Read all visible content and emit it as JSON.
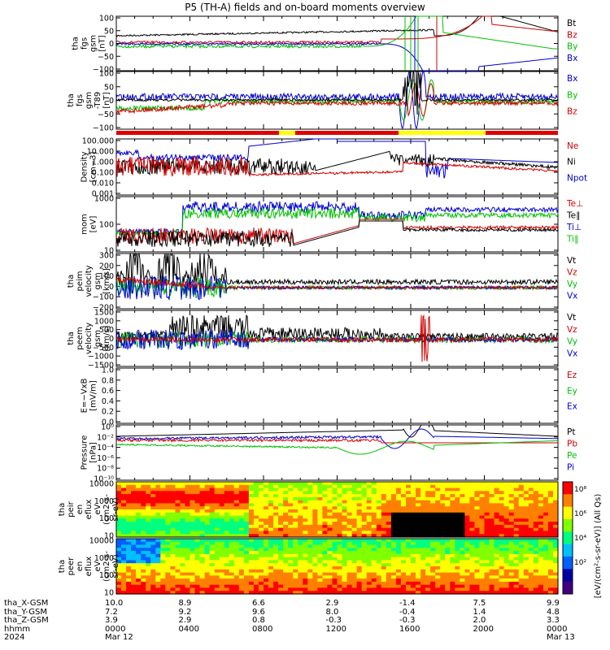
{
  "title": "P5 (TH-A) fields and on-board moments overview",
  "chart_data": {
    "type": "line",
    "time_ticks": [
      "0000",
      "0400",
      "0800",
      "1200",
      "1600",
      "2000",
      "0000"
    ],
    "date_ticks": [
      "Mar 12",
      "",
      "",
      "",
      "",
      "",
      "Mar 13"
    ],
    "footer_rows": [
      {
        "label": "tha_X-GSM",
        "values": [
          "10.0",
          "8.9",
          "6.6",
          "2.9",
          "-1.4",
          "7.5",
          "9.9"
        ]
      },
      {
        "label": "tha_Y-GSM",
        "values": [
          "7.2",
          "9.2",
          "9.6",
          "8.0",
          "-0.4",
          "1.4",
          "4.8"
        ]
      },
      {
        "label": "tha_Z-GSM",
        "values": [
          "3.9",
          "2.9",
          "0.8",
          "-0.3",
          "-0.3",
          "2.0",
          "3.3"
        ]
      },
      {
        "label": "hhmm",
        "values": []
      },
      {
        "label": "2024",
        "values": []
      }
    ],
    "panels": [
      {
        "ylabel": [
          "tha",
          "fgs",
          "gsm",
          "[nT]"
        ],
        "ticks": [
          "100",
          "50",
          "0",
          "−50",
          "−100"
        ],
        "legend": [
          [
            "Bt",
            "#000000"
          ],
          [
            "Bz",
            "#d00000"
          ],
          [
            "By",
            "#00c000"
          ],
          [
            "Bx",
            "#0000d0"
          ]
        ]
      },
      {
        "ylabel": [
          "tha",
          "fgs",
          "gsm",
          "-T89",
          "[nT]"
        ],
        "ticks": [
          "100",
          "50",
          "0",
          "−50",
          "−100"
        ],
        "legend": [
          [
            "Bx",
            "#0000d0"
          ],
          [
            "By",
            "#00c000"
          ],
          [
            "Bz",
            "#d00000"
          ]
        ]
      },
      {
        "ylabel": [
          "Density",
          "[cm−3]"
        ],
        "ticks": [
          "100.000",
          "10.000",
          "1.000",
          "0.100",
          "0.010",
          "0.001"
        ],
        "legend": [
          [
            "Ne",
            "#d00000"
          ],
          [
            "Ni",
            "#000000"
          ],
          [
            "Npot",
            "#0000d0"
          ]
        ]
      },
      {
        "ylabel": [
          "mom",
          "[eV]"
        ],
        "ticks": [
          "1000",
          "100",
          "10"
        ],
        "legend": [
          [
            "Te⊥",
            "#d00000"
          ],
          [
            "Te∥",
            "#000000"
          ],
          [
            "Ti⊥",
            "#0000d0"
          ],
          [
            "Ti∥",
            "#00c000"
          ]
        ]
      },
      {
        "ylabel": [
          "tha",
          "peim",
          "velocity",
          "gsm",
          "[km/s]"
        ],
        "ticks": [
          "300",
          "200",
          "100",
          "0",
          "−100",
          "−200"
        ],
        "legend": [
          [
            "Vt",
            "#000000"
          ],
          [
            "Vz",
            "#d00000"
          ],
          [
            "Vy",
            "#00c000"
          ],
          [
            "Vx",
            "#0000d0"
          ]
        ]
      },
      {
        "ylabel": [
          "tha",
          "peem",
          "velocity",
          "gsm",
          "[km/s]"
        ],
        "ticks": [
          "1500",
          "1000",
          "500",
          "0",
          "−500",
          "−1000",
          "−1500"
        ],
        "legend": [
          [
            "Vt",
            "#000000"
          ],
          [
            "Vz",
            "#d00000"
          ],
          [
            "Vy",
            "#00c000"
          ],
          [
            "Vx",
            "#0000d0"
          ]
        ]
      },
      {
        "ylabel": [
          "E=−VxB",
          "[mV/m]"
        ],
        "ticks": [
          "1.0",
          "0.8",
          "0.6",
          "0.4",
          "0.2",
          "0.0"
        ],
        "legend": [
          [
            "Ez",
            "#d00000"
          ],
          [
            "Ey",
            "#00c000"
          ],
          [
            "Ex",
            "#0000d0"
          ]
        ]
      },
      {
        "ylabel": [
          "Pressure",
          "[nPa]"
        ],
        "ticks": [
          "10⁰",
          "10⁻²",
          "10⁻⁴",
          "10⁻⁶",
          "10⁻⁸",
          "10⁻¹⁰"
        ],
        "legend": [
          [
            "Pt",
            "#000000"
          ],
          [
            "Pb",
            "#d00000"
          ],
          [
            "Pe",
            "#00c000"
          ],
          [
            "Pi",
            "#0000d0"
          ]
        ]
      },
      {
        "ylabel": [
          "tha",
          "peir",
          "en",
          "eflux",
          "eV",
          "(cm2-s-",
          "sr-eV)"
        ],
        "ticks": [
          "10000",
          "1000",
          "100",
          "10"
        ],
        "legend": []
      },
      {
        "ylabel": [
          "tha",
          "peer",
          "en",
          "eflux",
          "eV",
          "(cm2-s-",
          "sr-eV)"
        ],
        "ticks": [
          "10000",
          "1000",
          "100",
          "10"
        ],
        "legend": []
      }
    ],
    "colorbar": {
      "label": "[eV/(cm²-s-sr-eV)] (All Qs)",
      "ticks": [
        "10⁸",
        "10⁶",
        "10⁴",
        "10²"
      ]
    }
  }
}
